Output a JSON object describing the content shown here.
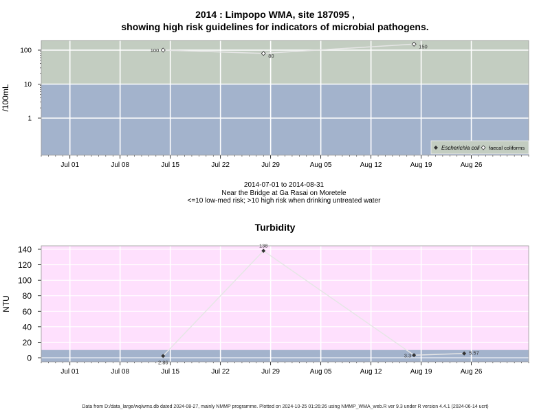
{
  "titles": {
    "line1": "2014 : Limpopo WMA, site 187095 ,",
    "line2": "showing high risk guidelines for indicators of microbial pathogens."
  },
  "subtitle": {
    "period": "2014-07-01 to 2014-08-31",
    "site": "Near the Bridge at Ga Rasai on Moretele",
    "guideline": "<=10 low-med risk; >10 high risk when drinking untreated water"
  },
  "footer": "Data from D:/data_large/wq/wms.db dated 2024-08-27, mainly NMMP programme. Plotted on 2024-10-25 01:26:26 using NMMP_WMA_web.R ver 9.3 under R version 4.4.1 (2024-06-14 ucrt)",
  "colors": {
    "high_risk_band": "#c3cdc1",
    "low_risk_band": "#a3b3cc",
    "turbidity_band": "#fee0fd",
    "grid": "#ffffff",
    "line": "#e6e6e6"
  },
  "chart_data": [
    {
      "type": "line",
      "title": "",
      "ylabel": "/100mL",
      "yscale": "log",
      "yticks": [
        1,
        10,
        100
      ],
      "ytick_labels": [
        "1",
        "10",
        "100"
      ],
      "xlim": [
        "2014-06-27",
        "2014-09-03"
      ],
      "xticks": [
        "2014-07-01",
        "2014-07-08",
        "2014-07-15",
        "2014-07-22",
        "2014-07-29",
        "2014-08-05",
        "2014-08-12",
        "2014-08-19",
        "2014-08-26"
      ],
      "xtick_labels": [
        "Jul 01",
        "Jul 08",
        "Jul 15",
        "Jul 22",
        "Jul 29",
        "Aug 05",
        "Aug 12",
        "Aug 19",
        "Aug 26"
      ],
      "guideline": 10,
      "series": [
        {
          "name": "Escherichia coli",
          "marker": "filled-diamond",
          "x": [],
          "y": [],
          "labels": []
        },
        {
          "name": "faecal coliforms",
          "marker": "open-diamond",
          "x": [
            "2014-07-14",
            "2014-07-28",
            "2014-08-18"
          ],
          "y": [
            100,
            80,
            150
          ],
          "labels": [
            "100",
            "80",
            "150"
          ]
        }
      ],
      "legend": "bottom-right"
    },
    {
      "type": "line",
      "title": "Turbidity",
      "ylabel": "NTU",
      "ylim": [
        -4,
        144
      ],
      "yticks": [
        0,
        20,
        40,
        60,
        80,
        100,
        120,
        140
      ],
      "ytick_labels": [
        "0",
        "20",
        "40",
        "60",
        "80",
        "100",
        "120",
        "140"
      ],
      "xlim": [
        "2014-06-27",
        "2014-09-03"
      ],
      "xticks": [
        "2014-07-01",
        "2014-07-08",
        "2014-07-15",
        "2014-07-22",
        "2014-07-29",
        "2014-08-05",
        "2014-08-12",
        "2014-08-19",
        "2014-08-26"
      ],
      "xtick_labels": [
        "Jul 01",
        "Jul 08",
        "Jul 15",
        "Jul 22",
        "Jul 29",
        "Aug 05",
        "Aug 12",
        "Aug 19",
        "Aug 26"
      ],
      "band_upper": 10,
      "series": [
        {
          "name": "",
          "marker": "filled-diamond",
          "x": [
            "2014-07-14",
            "2014-07-28",
            "2014-08-18",
            "2014-08-25"
          ],
          "y": [
            2.36,
            138,
            3.3,
            5.57
          ],
          "labels": [
            "2.36",
            "138",
            "3.3",
            "5.57"
          ]
        }
      ]
    }
  ]
}
